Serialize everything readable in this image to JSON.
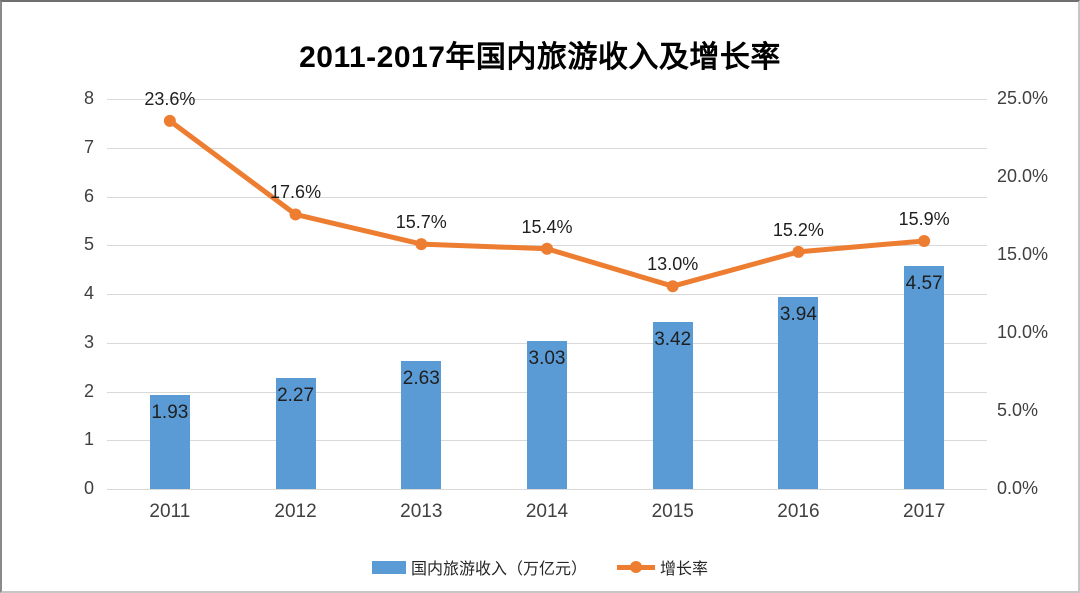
{
  "chart_data": {
    "type": "bar",
    "subtype": "combo-bar-line",
    "title": "2011-2017年国内旅游收入及增长率",
    "categories": [
      "2011",
      "2012",
      "2013",
      "2014",
      "2015",
      "2016",
      "2017"
    ],
    "series": [
      {
        "name": "国内旅游收入（万亿元）",
        "type": "bar",
        "axis": "left",
        "values": [
          1.93,
          2.27,
          2.63,
          3.03,
          3.42,
          3.94,
          4.57
        ],
        "data_labels": [
          "1.93",
          "2.27",
          "2.63",
          "3.03",
          "3.42",
          "3.94",
          "4.57"
        ],
        "color": "#5b9bd5"
      },
      {
        "name": "增长率",
        "type": "line",
        "axis": "right",
        "values": [
          23.6,
          17.6,
          15.7,
          15.4,
          13.0,
          15.2,
          15.9
        ],
        "data_labels": [
          "23.6%",
          "17.6%",
          "15.7%",
          "15.4%",
          "13.0%",
          "15.2%",
          "15.9%"
        ],
        "color": "#ed7d31"
      }
    ],
    "left_axis": {
      "min": 0,
      "max": 8,
      "step": 1,
      "tick_labels": [
        "8",
        "7",
        "6",
        "5",
        "4",
        "3",
        "2",
        "1",
        "0"
      ]
    },
    "right_axis": {
      "min": 0,
      "max": 25,
      "step": 5,
      "tick_labels": [
        "25.0%",
        "20.0%",
        "15.0%",
        "10.0%",
        "5.0%",
        "0.0%"
      ]
    },
    "grid": true,
    "legend_position": "bottom",
    "colors": {
      "bar": "#5b9bd5",
      "line": "#ed7d31",
      "gridline": "#d9d9d9",
      "axis_text": "#404040",
      "data_label_text": "#1f1f1f",
      "title_text": "#000000",
      "background": "#ffffff"
    }
  }
}
